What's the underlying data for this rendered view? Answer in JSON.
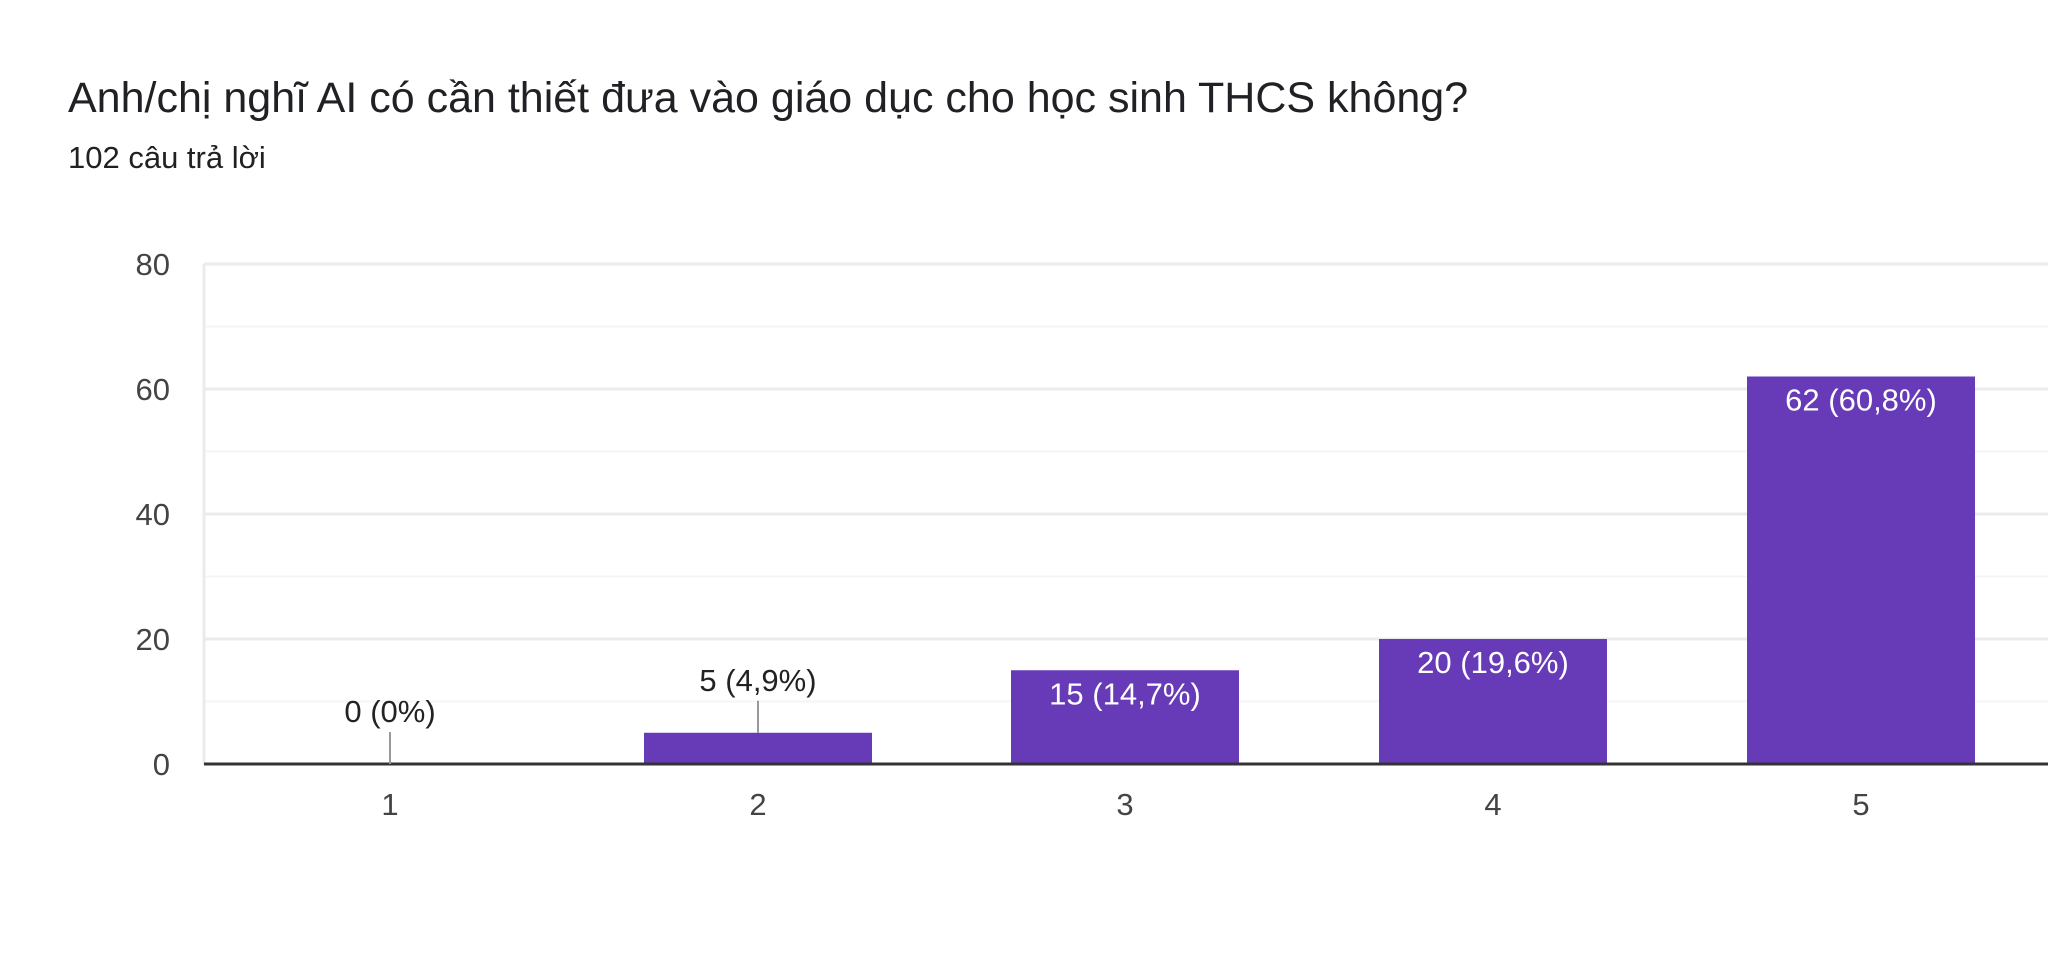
{
  "question": {
    "title": "Anh/chị nghĩ AI có cần thiết đưa vào giáo dục cho học sinh THCS không?",
    "response_count": "102 câu trả lời"
  },
  "colors": {
    "bar": "#673ab7",
    "gridline": "#ebebeb",
    "minor_gridline": "#f5f5f5",
    "baseline": "#333333",
    "leader_line": "#999999"
  },
  "chart_data": {
    "type": "bar",
    "title": "Anh/chị nghĩ AI có cần thiết đưa vào giáo dục cho học sinh THCS không?",
    "subtitle": "102 câu trả lời",
    "xlabel": "",
    "ylabel": "",
    "categories": [
      "1",
      "2",
      "3",
      "4",
      "5"
    ],
    "values": [
      0,
      5,
      15,
      20,
      62
    ],
    "data_labels": [
      "0 (0%)",
      "5 (4,9%)",
      "15 (14,7%)",
      "20 (19,6%)",
      "62 (60,8%)"
    ],
    "ylim": [
      0,
      80
    ],
    "y_ticks": [
      0,
      20,
      40,
      60,
      80
    ],
    "grid": true,
    "legend": "none"
  }
}
